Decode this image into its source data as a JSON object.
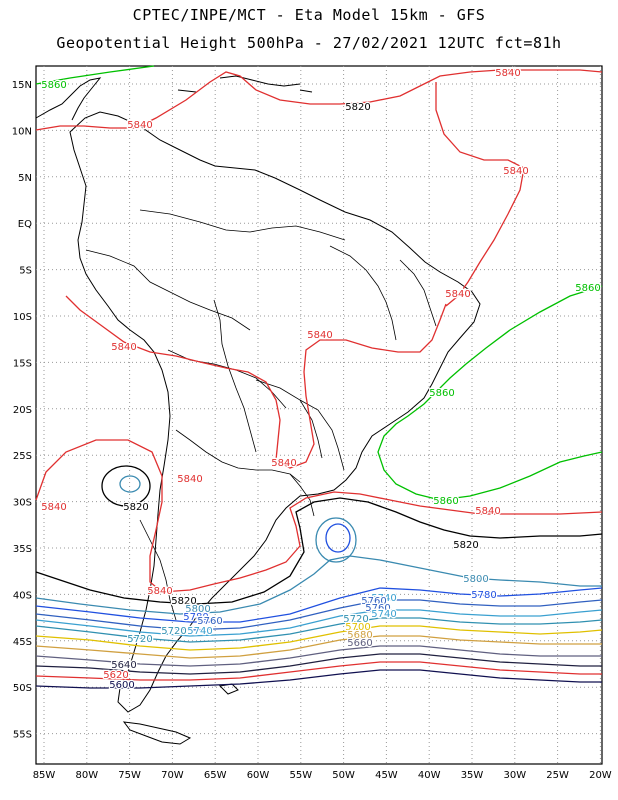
{
  "title_line1": "CPTEC/INPE/MCT -  Eta Model 15km - GFS",
  "title_line2": "Geopotential Height 500hPa - 27/02/2021 12UTC fct=81h",
  "lat_labels": [
    "15N",
    "10N",
    "5N",
    "EQ",
    "5S",
    "10S",
    "15S",
    "20S",
    "25S",
    "30S",
    "35S",
    "40S",
    "45S",
    "50S",
    "55S"
  ],
  "lon_labels": [
    "85W",
    "80W",
    "75W",
    "70W",
    "65W",
    "60W",
    "55W",
    "50W",
    "45W",
    "40W",
    "35W",
    "30W",
    "25W",
    "20W"
  ],
  "contour_labels": [
    {
      "text": "5860",
      "color": "#00c000"
    },
    {
      "text": "5840",
      "color": "#e03030"
    },
    {
      "text": "5820",
      "color": "#000000"
    },
    {
      "text": "5840",
      "color": "#e03030"
    },
    {
      "text": "5840",
      "color": "#e03030"
    },
    {
      "text": "5860",
      "color": "#00c000"
    },
    {
      "text": "5840",
      "color": "#e03030"
    },
    {
      "text": "5840",
      "color": "#e03030"
    },
    {
      "text": "5840",
      "color": "#e03030"
    },
    {
      "text": "5860",
      "color": "#00c000"
    },
    {
      "text": "5840",
      "color": "#e03030"
    },
    {
      "text": "5840",
      "color": "#e03030"
    },
    {
      "text": "5840",
      "color": "#e03030"
    },
    {
      "text": "5820",
      "color": "#000000"
    },
    {
      "text": "5860",
      "color": "#00c000"
    },
    {
      "text": "5840",
      "color": "#e03030"
    },
    {
      "text": "5820",
      "color": "#000000"
    },
    {
      "text": "5800",
      "color": "#3a8ab0"
    },
    {
      "text": "5780",
      "color": "#2050e0"
    },
    {
      "text": "5840",
      "color": "#e03030"
    },
    {
      "text": "5820",
      "color": "#000000"
    },
    {
      "text": "5800",
      "color": "#3a8ab0"
    },
    {
      "text": "5780",
      "color": "#2050e0"
    },
    {
      "text": "5760",
      "color": "#3060c0"
    },
    {
      "text": "5740",
      "color": "#3aa0d0"
    },
    {
      "text": "5720",
      "color": "#3090b0"
    },
    {
      "text": "5720",
      "color": "#3090b0"
    },
    {
      "text": "5740",
      "color": "#3aa0d0"
    },
    {
      "text": "5760",
      "color": "#3060c0"
    },
    {
      "text": "5760",
      "color": "#3060c0"
    },
    {
      "text": "5740",
      "color": "#3aa0d0"
    },
    {
      "text": "5720",
      "color": "#3090b0"
    },
    {
      "text": "5700",
      "color": "#e0c000"
    },
    {
      "text": "5680",
      "color": "#d0a040"
    },
    {
      "text": "5660",
      "color": "#606080"
    },
    {
      "text": "5640",
      "color": "#202040"
    },
    {
      "text": "5620",
      "color": "#e03030"
    },
    {
      "text": "5600",
      "color": "#101050"
    }
  ]
}
